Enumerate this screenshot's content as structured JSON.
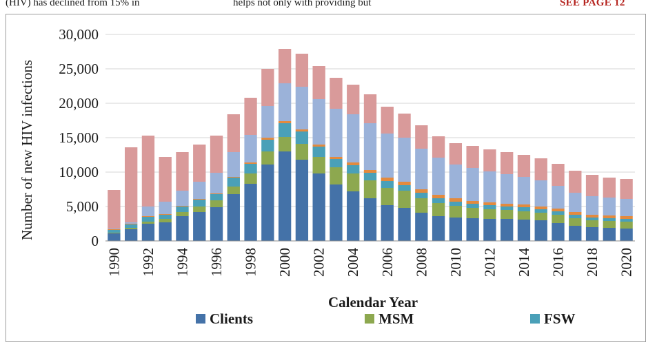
{
  "page": {
    "top_left_text": "(HIV) has declined from 15% in",
    "top_middle_text": "helps not only with providing but",
    "top_right_text": "SEE PAGE 12"
  },
  "chart_data": {
    "type": "bar",
    "stacked": true,
    "title": "",
    "xlabel": "Calendar Year",
    "ylabel": "Number of new HIV infections",
    "ylim": [
      0,
      30000
    ],
    "yticks": [
      0,
      5000,
      10000,
      15000,
      20000,
      25000,
      30000
    ],
    "ytick_labels": [
      "0",
      "5,000",
      "10,000",
      "15,000",
      "20,000",
      "25,000",
      "30,000"
    ],
    "grid": "horizontal",
    "legend_position": "bottom",
    "categories": [
      "1990",
      "1991",
      "1992",
      "1993",
      "1994",
      "1995",
      "1996",
      "1997",
      "1998",
      "1999",
      "2000",
      "2001",
      "2002",
      "2003",
      "2004",
      "2005",
      "2006",
      "2007",
      "2008",
      "2009",
      "2010",
      "2011",
      "2012",
      "2013",
      "2014",
      "2015",
      "2016",
      "2017",
      "2018",
      "2019",
      "2020"
    ],
    "xtick_labels": [
      "1990",
      "",
      "1992",
      "",
      "1994",
      "",
      "1996",
      "",
      "1998",
      "",
      "2000",
      "",
      "2002",
      "",
      "2004",
      "",
      "2006",
      "",
      "2008",
      "",
      "2010",
      "",
      "2012",
      "",
      "2014",
      "",
      "2016",
      "",
      "2018",
      "",
      "2020"
    ],
    "series": [
      {
        "name": "Clients",
        "color": "#4472a8",
        "legend": true,
        "values": [
          1100,
          1700,
          2500,
          2700,
          3600,
          4200,
          4900,
          6800,
          8300,
          11100,
          13000,
          11800,
          9800,
          8200,
          7200,
          6200,
          5200,
          4800,
          4100,
          3600,
          3400,
          3300,
          3200,
          3200,
          3100,
          3000,
          2600,
          2200,
          2000,
          1900,
          1800
        ]
      },
      {
        "name": "MSM",
        "color": "#8da84f",
        "legend": true,
        "values": [
          100,
          200,
          300,
          500,
          600,
          800,
          1000,
          1100,
          1500,
          1900,
          2100,
          2300,
          2400,
          2500,
          2600,
          2600,
          2500,
          2500,
          2100,
          1900,
          1700,
          1500,
          1400,
          1300,
          1200,
          1100,
          1200,
          1100,
          1000,
          1000,
          1000
        ]
      },
      {
        "name": "FSW",
        "color": "#4aa0b8",
        "legend": true,
        "values": [
          400,
          500,
          700,
          600,
          800,
          1000,
          900,
          1300,
          1400,
          1700,
          2000,
          1800,
          1500,
          1200,
          1200,
          1100,
          1000,
          800,
          800,
          700,
          600,
          600,
          600,
          500,
          600,
          500,
          500,
          500,
          400,
          400,
          400
        ]
      },
      {
        "name": "",
        "color": "#e38a3e",
        "legend": false,
        "values": [
          100,
          100,
          100,
          100,
          100,
          100,
          100,
          100,
          200,
          300,
          300,
          300,
          300,
          300,
          400,
          400,
          500,
          500,
          500,
          500,
          500,
          400,
          400,
          400,
          400,
          400,
          400,
          400,
          400,
          400,
          400
        ]
      },
      {
        "name": "",
        "color": "#9bb2d9",
        "legend": false,
        "values": [
          100,
          200,
          1400,
          1800,
          2200,
          2500,
          3000,
          3600,
          4000,
          4600,
          5500,
          6200,
          6600,
          7000,
          7000,
          6800,
          6400,
          6400,
          5900,
          5400,
          4900,
          4800,
          4500,
          4300,
          4000,
          3800,
          3300,
          2800,
          2700,
          2600,
          2500
        ]
      },
      {
        "name": "",
        "color": "#d99a9a",
        "legend": false,
        "values": [
          5600,
          10900,
          10300,
          6500,
          5600,
          5400,
          5400,
          5500,
          5400,
          5400,
          5000,
          4800,
          4800,
          4500,
          4300,
          4200,
          3900,
          3500,
          3400,
          3100,
          3100,
          3200,
          3200,
          3200,
          3200,
          3200,
          3200,
          3200,
          3100,
          2900,
          2900
        ]
      }
    ]
  }
}
